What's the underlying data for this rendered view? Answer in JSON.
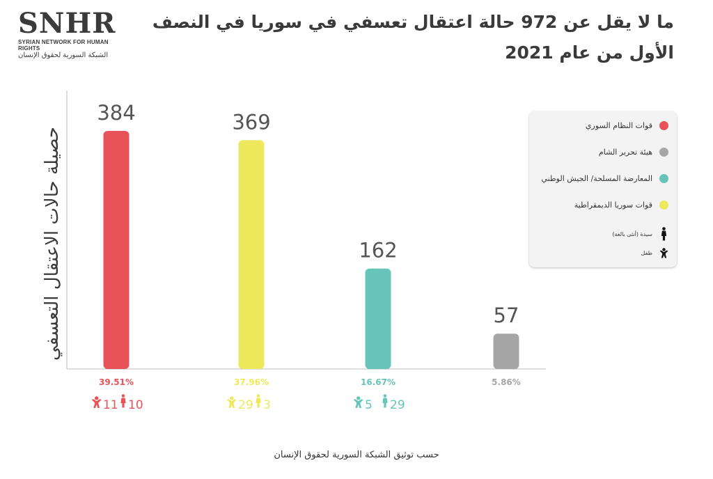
{
  "logo": {
    "mark": "SNHR",
    "english": "SYRIAN NETWORK FOR HUMAN RIGHTS",
    "arabic": "الشبكة السورية لحقوق الإنسان"
  },
  "title": "ما لا يقل عن 972 حالة اعتقال تعسفي في سوريا في النصف الأول من عام 2021",
  "source": "حسب توثيق الشبكة السورية لحقوق الإنسان",
  "colors": {
    "regime": "#e8535a",
    "sdf": "#eee95c",
    "opposition": "#66c4b8",
    "hts": "#a6a6a6",
    "text_dark": "#3a3a3a"
  },
  "legend": {
    "items": [
      {
        "label": "قوات النظام السوري",
        "color": "#e8535a"
      },
      {
        "label": "هيئة تحرير الشام",
        "color": "#a6a6a6"
      },
      {
        "label": "المعارضة المسلحة/ الجيش الوطني",
        "color": "#66c4b8"
      },
      {
        "label": "قوات سوريا الديمقراطية",
        "color": "#eee95c"
      }
    ],
    "woman_label": "سيدة (أنثى بالغة)",
    "child_label": "طفل",
    "woman_icon": "woman-icon",
    "child_icon": "child-icon"
  },
  "chart_data": {
    "type": "bar",
    "ylabel": "حصيلة حالات الاعتقال التعسفي",
    "xlabel": "",
    "categories": [
      "قوات النظام السوري",
      "قوات سوريا الديمقراطية",
      "المعارضة المسلحة/ الجيش الوطني",
      "هيئة تحرير الشام"
    ],
    "values": [
      384,
      369,
      162,
      57
    ],
    "value_labels": [
      "384",
      "369",
      "162",
      "57"
    ],
    "percentages": [
      "39.51%",
      "37.96%",
      "16.67%",
      "5.86%"
    ],
    "colors": [
      "#e8535a",
      "#eee95c",
      "#66c4b8",
      "#a6a6a6"
    ],
    "children": [
      "11",
      "29",
      "5",
      null
    ],
    "women": [
      "10",
      "3",
      "29",
      null
    ],
    "ylim": [
      0,
      384
    ],
    "grid": false
  }
}
